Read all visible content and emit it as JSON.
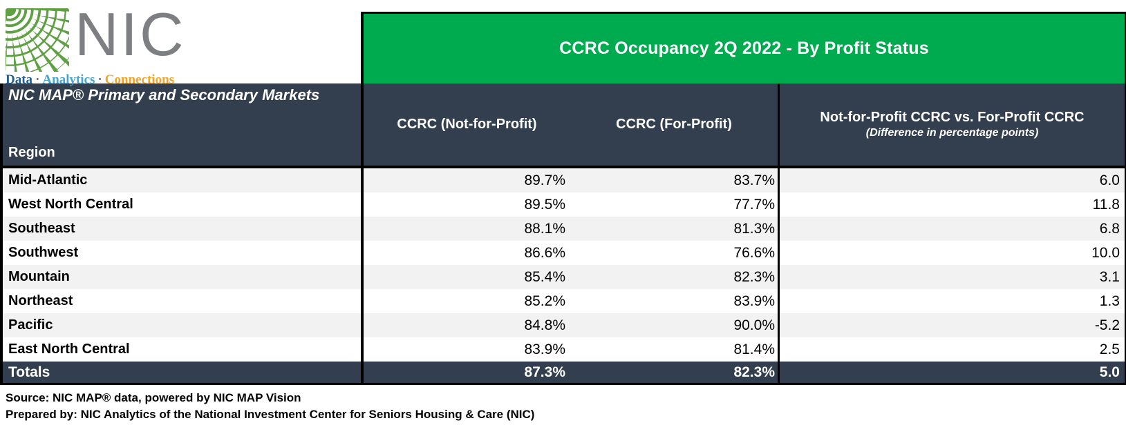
{
  "logo": {
    "name": "NIC",
    "tagline_parts": [
      "Data",
      "Analytics",
      "Connections"
    ],
    "separator": "·",
    "colors": {
      "square_green": "#5fa044",
      "name_gray": "#7d7f82",
      "data_blue": "#235f8f",
      "analytics_blue": "#4aa3cc",
      "connections_orange": "#f2a428"
    }
  },
  "header": {
    "title": "CCRC Occupancy 2Q 2022 - By Profit Status",
    "banner_green": "#00ab50"
  },
  "table": {
    "market_label": "NIC MAP® Primary and Secondary Markets",
    "region_label": "Region",
    "columns": [
      "CCRC (Not-for-Profit)",
      "CCRC (For-Profit)",
      "Not-for-Profit CCRC vs. For-Profit CCRC"
    ],
    "diff_subtitle": "(Difference in percentage points)",
    "rows": [
      {
        "region": "Mid-Atlantic",
        "nfp": "89.7%",
        "fp": "83.7%",
        "diff": "6.0"
      },
      {
        "region": "West North Central",
        "nfp": "89.5%",
        "fp": "77.7%",
        "diff": "11.8"
      },
      {
        "region": "Southeast",
        "nfp": "88.1%",
        "fp": "81.3%",
        "diff": "6.8"
      },
      {
        "region": "Southwest",
        "nfp": "86.6%",
        "fp": "76.6%",
        "diff": "10.0"
      },
      {
        "region": "Mountain",
        "nfp": "85.4%",
        "fp": "82.3%",
        "diff": "3.1"
      },
      {
        "region": "Northeast",
        "nfp": "85.2%",
        "fp": "83.9%",
        "diff": "1.3"
      },
      {
        "region": "Pacific",
        "nfp": "84.8%",
        "fp": "90.0%",
        "diff": "-5.2"
      },
      {
        "region": "East North Central",
        "nfp": "83.9%",
        "fp": "81.4%",
        "diff": "2.5"
      }
    ],
    "totals": {
      "region": "Totals",
      "nfp": "87.3%",
      "fp": "82.3%",
      "diff": "5.0"
    },
    "colors": {
      "header_dark": "#333e4e",
      "row_alt_gray": "#f2f2f2",
      "border_black": "#000000"
    }
  },
  "footer": {
    "source": "Source: NIC MAP® data, powered by NIC MAP Vision",
    "prepared": "Prepared by: NIC Analytics of the National Investment Center for Seniors Housing & Care (NIC)"
  },
  "chart_data": {
    "type": "table",
    "title": "CCRC Occupancy 2Q 2022 - By Profit Status",
    "subtitle": "NIC MAP® Primary and Secondary Markets",
    "categories": [
      "Mid-Atlantic",
      "West North Central",
      "Southeast",
      "Southwest",
      "Mountain",
      "Northeast",
      "Pacific",
      "East North Central",
      "Totals"
    ],
    "series": [
      {
        "name": "CCRC (Not-for-Profit)",
        "unit": "%",
        "values": [
          89.7,
          89.5,
          88.1,
          86.6,
          85.4,
          85.2,
          84.8,
          83.9,
          87.3
        ]
      },
      {
        "name": "CCRC (For-Profit)",
        "unit": "%",
        "values": [
          83.7,
          77.7,
          81.3,
          76.6,
          82.3,
          83.9,
          90.0,
          81.4,
          82.3
        ]
      },
      {
        "name": "Not-for-Profit CCRC vs. For-Profit CCRC (Difference in percentage points)",
        "unit": "pp",
        "values": [
          6.0,
          11.8,
          6.8,
          10.0,
          3.1,
          1.3,
          -5.2,
          2.5,
          5.0
        ]
      }
    ]
  }
}
